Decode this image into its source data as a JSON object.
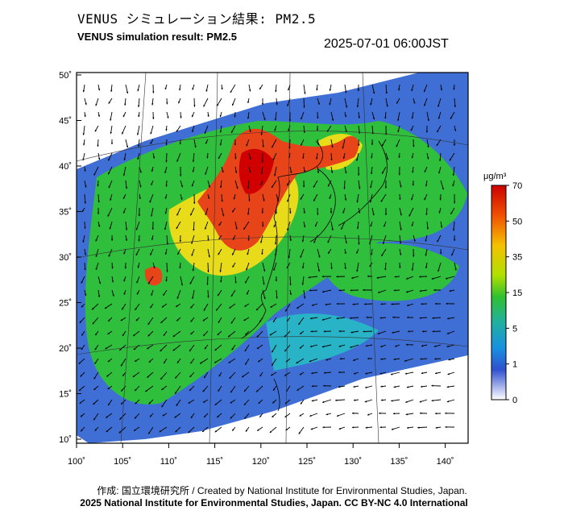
{
  "header": {
    "title_jp": "VENUS シミュレーション結果: PM2.5",
    "title_en": "VENUS simulation result: PM2.5",
    "timestamp": "2025-07-01 06:00JST"
  },
  "map": {
    "lon_ticks": [
      "100˚",
      "105˚",
      "110˚",
      "115˚",
      "120˚",
      "125˚",
      "130˚",
      "135˚",
      "140˚"
    ],
    "lat_ticks": [
      "50˚",
      "45˚",
      "40˚",
      "35˚",
      "30˚",
      "25˚",
      "20˚",
      "15˚",
      "10˚"
    ],
    "variable": "PM2.5",
    "wind_vectors": true
  },
  "legend": {
    "unit": "μg/m³",
    "levels": [
      "70",
      "50",
      "35",
      "15",
      "5",
      "1",
      "0"
    ],
    "colors": [
      "#e00000",
      "#f07000",
      "#f5d000",
      "#40c020",
      "#20a8a8",
      "#3060e0",
      "#ffffff"
    ]
  },
  "footer": {
    "credit": "作成: 国立環境研究所 / Created by National Institute for Environmental Studies, Japan.",
    "license": "2025 National Institute for Environmental Studies, Japan. CC BY-NC 4.0 International"
  }
}
